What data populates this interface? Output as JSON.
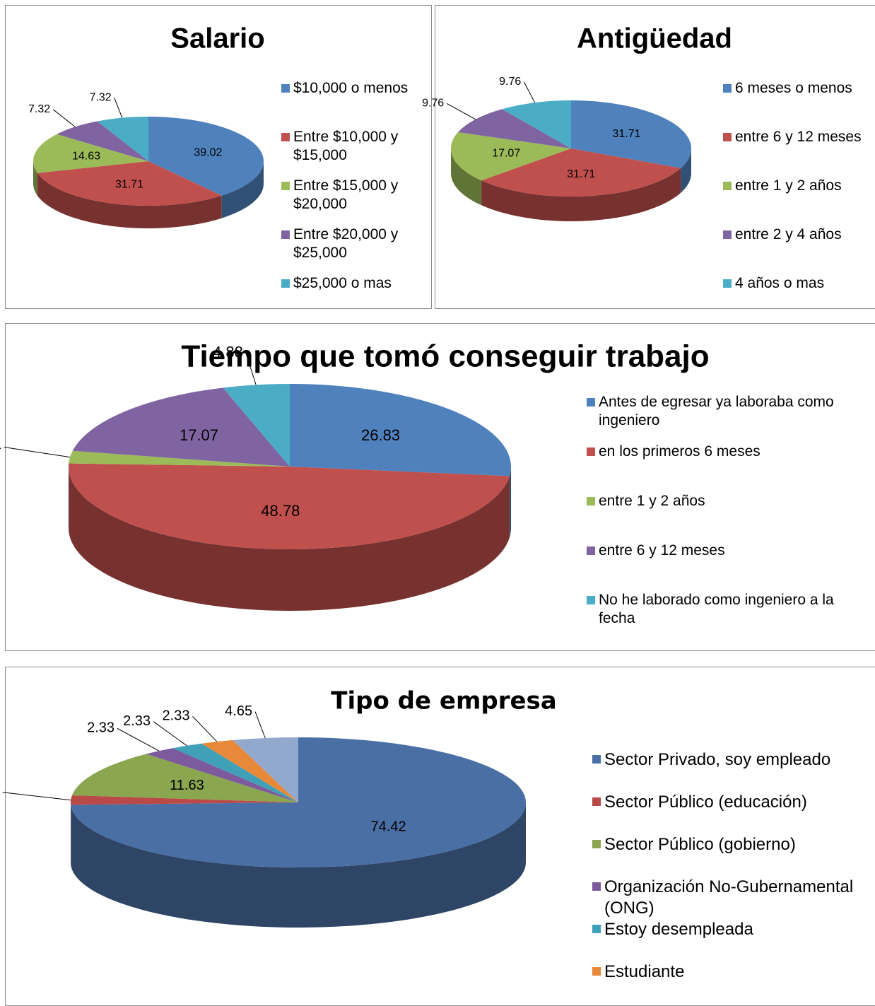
{
  "chart_data": [
    {
      "type": "pie",
      "title": "Salario",
      "categories": [
        "$10,000 o menos",
        "Entre $10,000 y $15,000",
        "Entre $15,000 y $20,000",
        "Entre $20,000 y $25,000",
        "$25,000 o mas"
      ],
      "values": [
        39.02,
        31.71,
        14.63,
        7.32,
        7.32
      ],
      "colors": [
        "#4f81bd",
        "#c0504d",
        "#9bbb59",
        "#8064a2",
        "#4bacc6"
      ]
    },
    {
      "type": "pie",
      "title": "Antigüedad",
      "categories": [
        "6 meses o menos",
        "entre 6 y 12 meses",
        "entre 1 y 2 años",
        "entre 2 y 4 años",
        "4 años o mas"
      ],
      "values": [
        31.71,
        31.71,
        17.07,
        9.76,
        9.76
      ],
      "colors": [
        "#4f81bd",
        "#c0504d",
        "#9bbb59",
        "#8064a2",
        "#4bacc6"
      ]
    },
    {
      "type": "pie",
      "title": "Tiempo que tomó conseguir trabajo",
      "categories": [
        "Antes de egresar ya laboraba como ingeniero",
        "en los primeros 6 meses",
        "entre 1 y 2 años",
        "entre 6 y 12 meses",
        "No he laborado como ingeniero a la fecha"
      ],
      "values": [
        26.83,
        48.78,
        2.44,
        17.07,
        4.88
      ],
      "colors": [
        "#4f81bd",
        "#c0504d",
        "#9bbb59",
        "#8064a2",
        "#4bacc6"
      ]
    },
    {
      "type": "pie",
      "title": "Tipo de empresa",
      "categories": [
        "Sector Privado, soy empleado",
        "Sector Público (educación)",
        "Sector Público (gobierno)",
        "Organización No-Gubernamental (ONG)",
        "Estoy desempleada",
        "Estudiante",
        null
      ],
      "values": [
        74.42,
        2.33,
        11.63,
        2.33,
        2.33,
        2.33,
        4.65
      ],
      "colors": [
        "#4a6fa5",
        "#b94a48",
        "#8aa64f",
        "#7c5a9c",
        "#3fa0b8",
        "#e8893a",
        "#93a8cd"
      ]
    }
  ]
}
